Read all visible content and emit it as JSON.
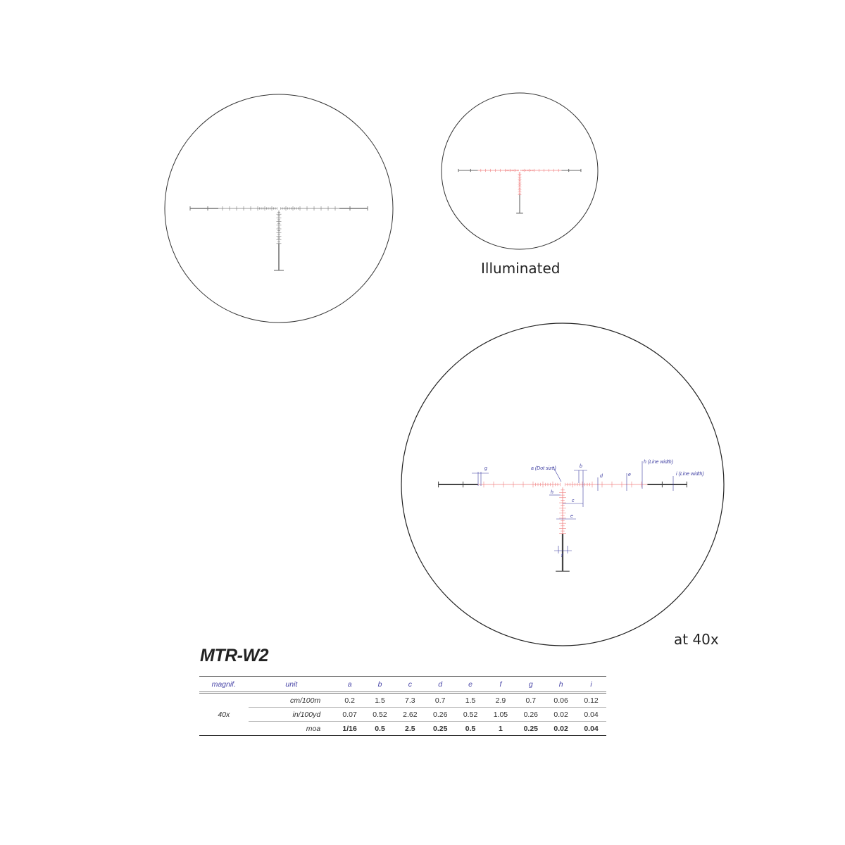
{
  "captions": {
    "illuminated": "Illuminated",
    "magnified": "at 40x"
  },
  "model": "MTR-W2",
  "colors": {
    "reticle": "#555555",
    "illumination": "#f08080",
    "annotation": "#3b3ba0"
  },
  "annotations": {
    "g": "g",
    "a": "a (Dot size)",
    "b": "b",
    "d": "d",
    "e_top": "e",
    "h_top": "h (Line width)",
    "i": "i (Line width)",
    "h_left": "h",
    "c": "c",
    "e_vert": "e",
    "f": "f"
  },
  "table": {
    "headers": [
      "magnif.",
      "unit",
      "a",
      "b",
      "c",
      "d",
      "e",
      "f",
      "g",
      "h",
      "i"
    ],
    "magnification": "40x",
    "rows": [
      {
        "unit": "cm/100m",
        "values": [
          "0.2",
          "1.5",
          "7.3",
          "0.7",
          "1.5",
          "2.9",
          "0.7",
          "0.06",
          "0.12"
        ]
      },
      {
        "unit": "in/100yd",
        "values": [
          "0.07",
          "0.52",
          "2.62",
          "0.26",
          "0.52",
          "1.05",
          "0.26",
          "0.02",
          "0.04"
        ]
      },
      {
        "unit": "moa",
        "values": [
          "1/16",
          "0.5",
          "2.5",
          "0.25",
          "0.5",
          "1",
          "0.25",
          "0.02",
          "0.04"
        ]
      }
    ]
  }
}
